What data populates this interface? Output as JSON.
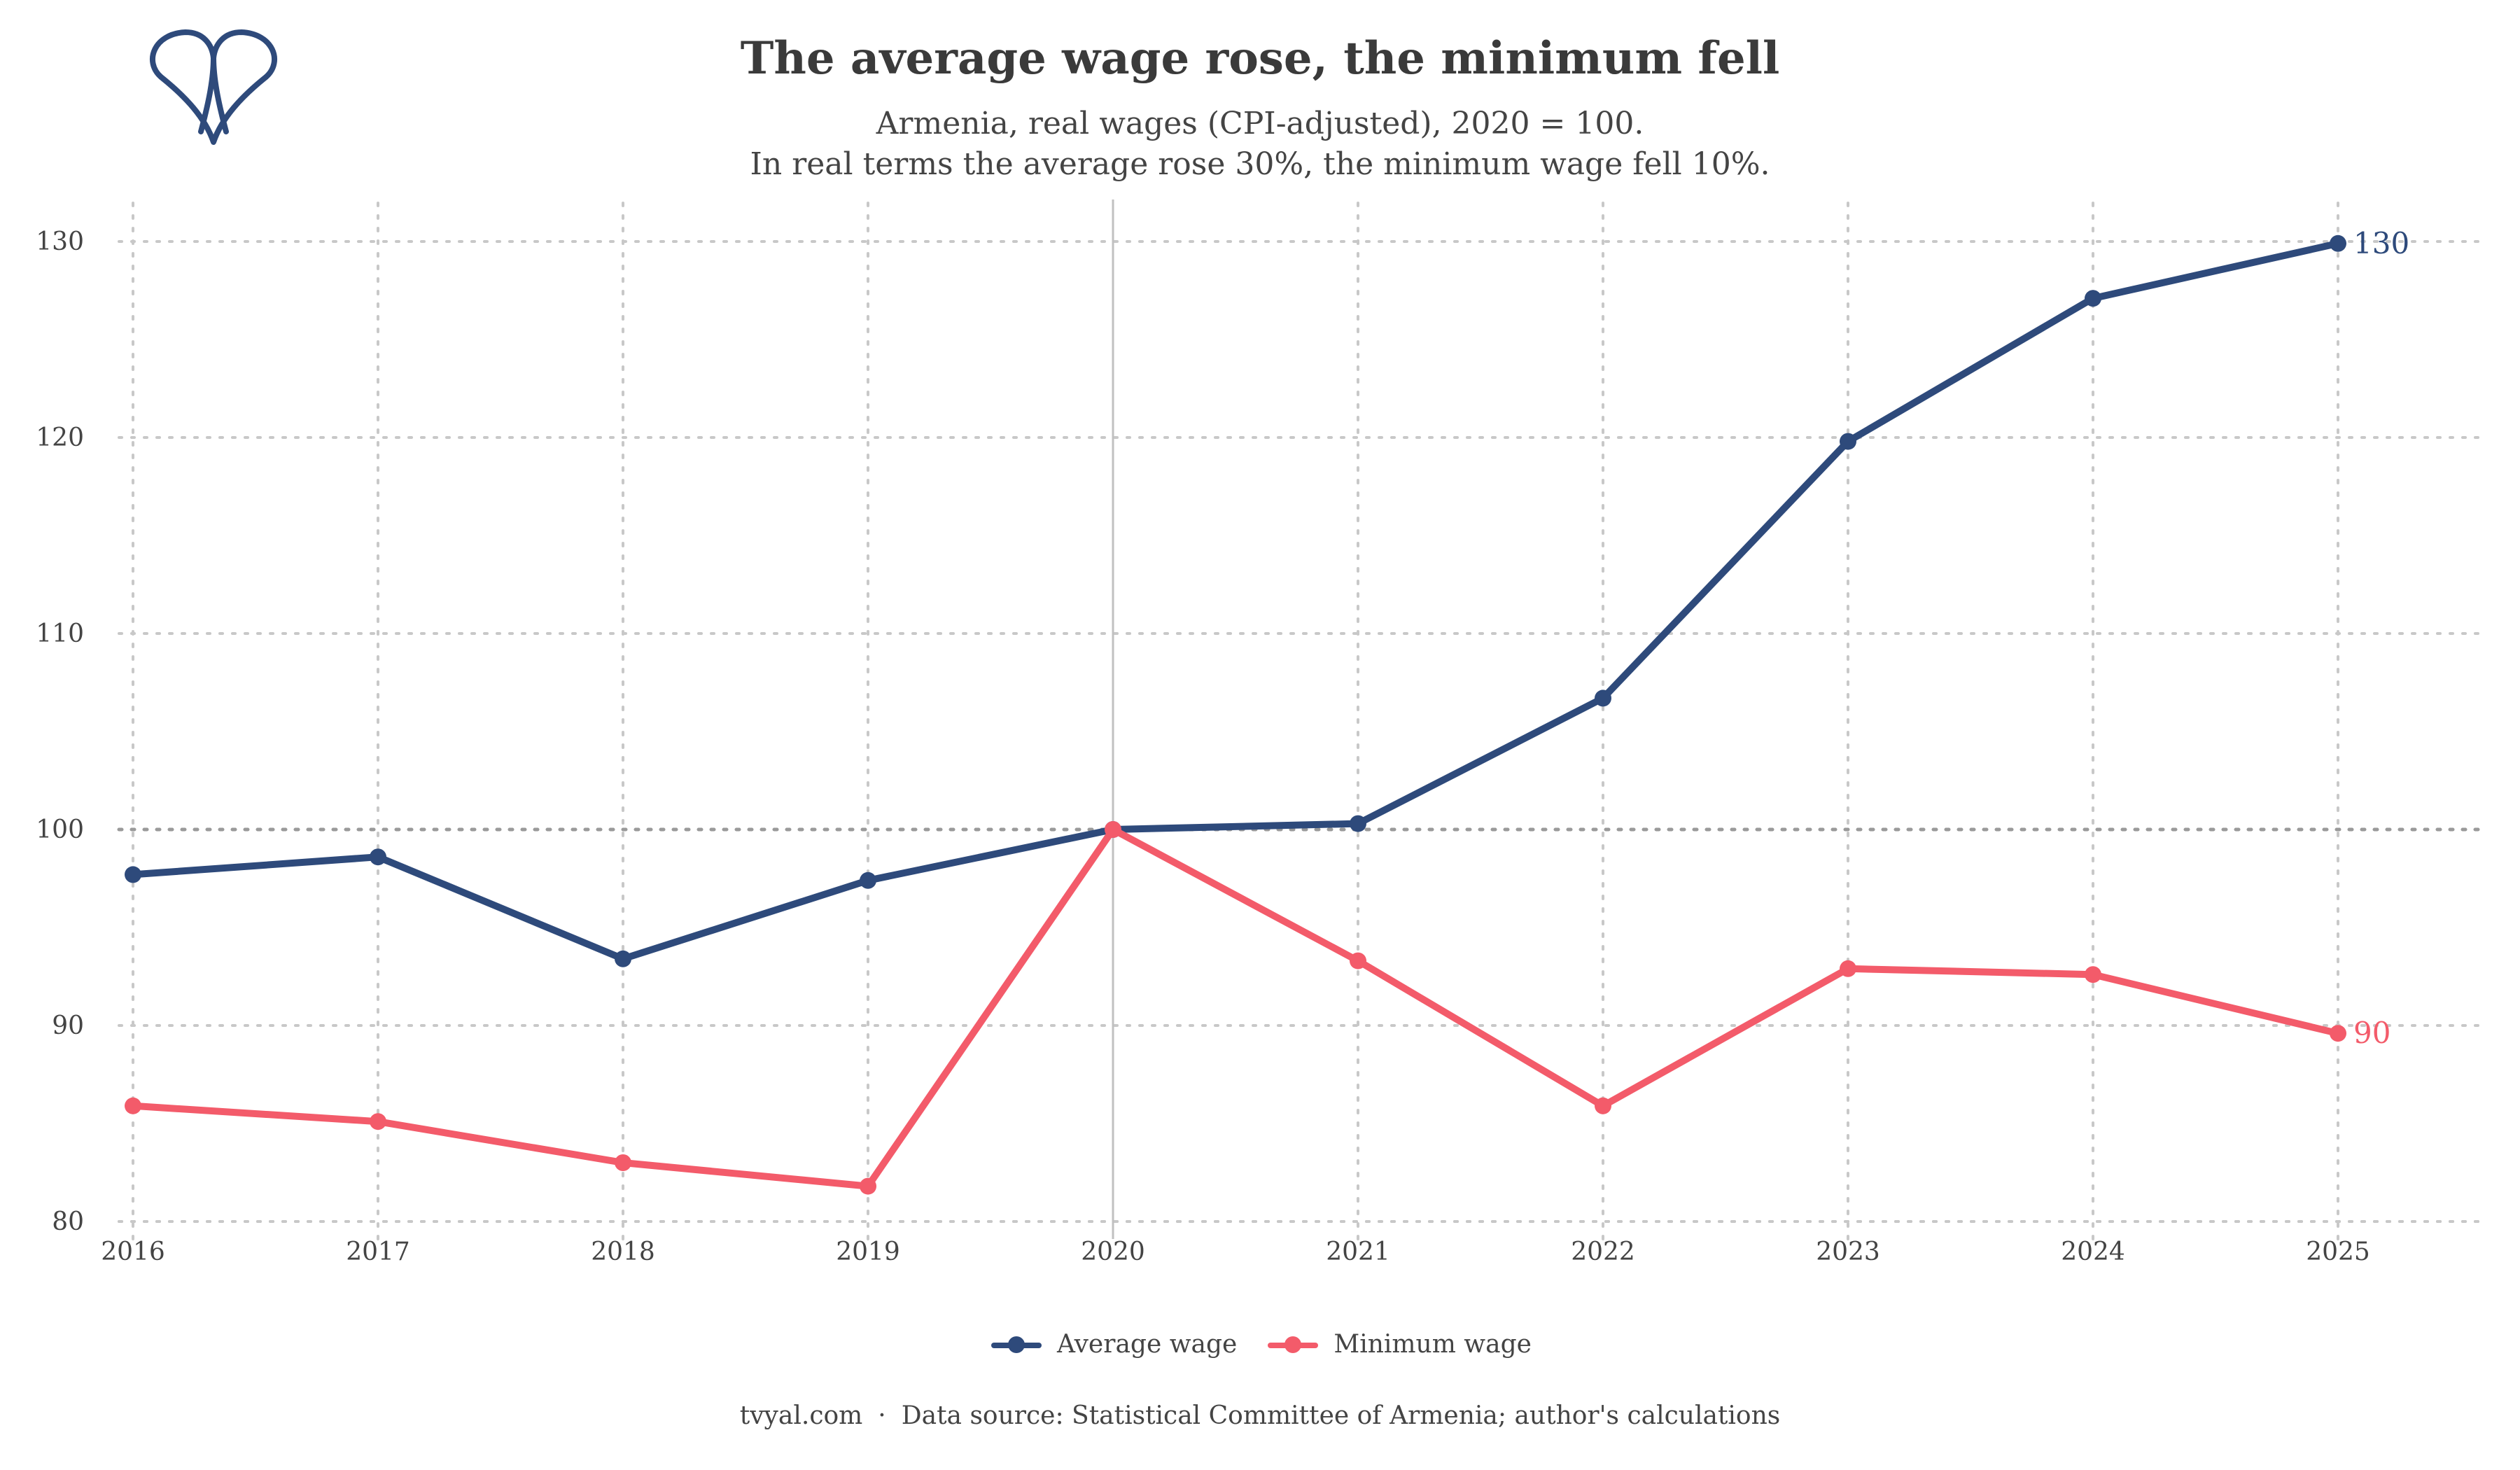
{
  "header": {
    "title": "The average wage rose, the minimum fell",
    "subtitle_line1": "Armenia, real wages (CPI-adjusted), 2020 = 100.",
    "subtitle_line2": "In real terms the average rose 30%, the minimum wage fell 10%."
  },
  "footer": {
    "site": "tvyal.com",
    "separator": "·",
    "source": "Data source: Statistical Committee of Armenia; author's calculations"
  },
  "legend": {
    "average": "Average wage",
    "minimum": "Minimum wage"
  },
  "colors": {
    "average": "#2e4a7b",
    "minimum": "#f35b6a",
    "grid": "#c8c8c8",
    "baseline": "#9a9a9a",
    "vline": "#c0c0c0",
    "logo": "#2e4a7b"
  },
  "logo_icon": "tvyal-logo-icon",
  "chart_data": {
    "type": "line",
    "x": [
      2016,
      2017,
      2018,
      2019,
      2020,
      2021,
      2022,
      2023,
      2024,
      2025
    ],
    "ylim": [
      80,
      130
    ],
    "yticks": [
      80,
      90,
      100,
      110,
      120,
      130
    ],
    "reference_y": 100,
    "reference_x": 2020,
    "grid": true,
    "legend_position": "bottom",
    "series": [
      {
        "name": "Average wage",
        "key": "average",
        "values": [
          97.7,
          98.6,
          93.4,
          97.4,
          100.0,
          100.3,
          106.7,
          119.8,
          127.1,
          129.9
        ],
        "end_label": "130"
      },
      {
        "name": "Minimum wage",
        "key": "minimum",
        "values": [
          85.9,
          85.1,
          83.0,
          81.8,
          100.0,
          93.3,
          85.9,
          92.9,
          92.6,
          89.6
        ],
        "end_label": "90"
      }
    ]
  }
}
